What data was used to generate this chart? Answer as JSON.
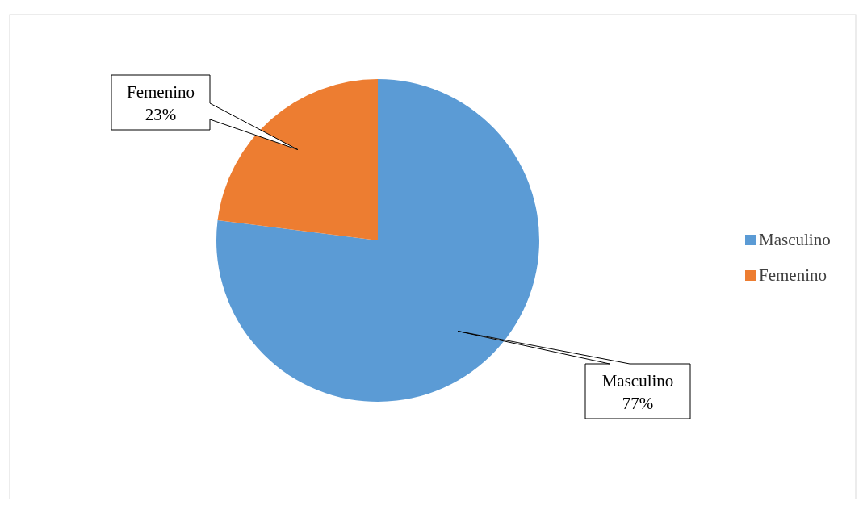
{
  "chart_data": {
    "type": "pie",
    "categories": [
      "Masculino",
      "Femenino"
    ],
    "values": [
      77,
      23
    ],
    "colors": [
      "#5b9bd5",
      "#ed7d31"
    ],
    "value_labels": [
      "77%",
      "23%"
    ],
    "legend": "right"
  }
}
